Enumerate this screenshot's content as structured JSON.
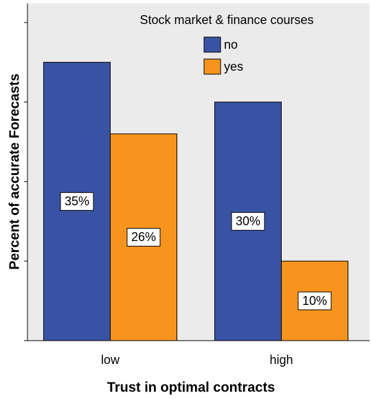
{
  "chart_data": {
    "type": "bar",
    "legend_title": "Stock market & finance courses",
    "x_label": "Trust in optimal contracts",
    "y_label": "Percent of accurate Forecasts",
    "categories": [
      "low",
      "high"
    ],
    "series": [
      {
        "name": "no",
        "color": "#3953a4",
        "values": [
          35,
          30
        ],
        "value_labels": [
          "35%",
          "30%"
        ]
      },
      {
        "name": "yes",
        "color": "#f7941d",
        "values": [
          26,
          10
        ],
        "value_labels": [
          "26%",
          "10%"
        ]
      }
    ],
    "ylim": [
      0,
      42.4
    ],
    "yticks": [
      0,
      10,
      20,
      30,
      40
    ],
    "legend": "top-right"
  }
}
